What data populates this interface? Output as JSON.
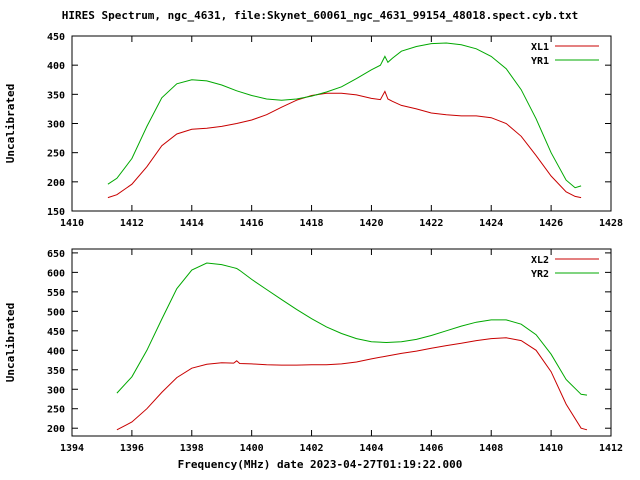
{
  "page": {
    "title": "HIRES Spectrum, ngc_4631, file:Skynet_60061_ngc_4631_99154_48018.spect.cyb.txt",
    "xlabel": "Frequency(MHz) date 2023-04-27T01:19:22.000",
    "colors": {
      "red": "#c80000",
      "green": "#00a800",
      "axis": "#000000",
      "background": "#ffffff"
    }
  },
  "chart_data": [
    {
      "type": "line",
      "ylabel": "Uncalibrated",
      "xlim": [
        1410,
        1428
      ],
      "xtick_step": 2,
      "ylim": [
        150,
        450
      ],
      "ytick_start": 150,
      "ytick_step": 50,
      "legend_position": "top-right",
      "x": [
        1411.2,
        1411.5,
        1412,
        1412.5,
        1413,
        1413.5,
        1414,
        1414.5,
        1415,
        1415.5,
        1416,
        1416.5,
        1417,
        1417.5,
        1418,
        1418.5,
        1419,
        1419.5,
        1420,
        1420.3,
        1420.45,
        1420.55,
        1420.7,
        1421,
        1421.5,
        1422,
        1422.5,
        1423,
        1423.5,
        1424,
        1424.5,
        1425,
        1425.5,
        1426,
        1426.5,
        1426.8,
        1427
      ],
      "series": [
        {
          "name": "XL1",
          "color": "#c80000",
          "values": [
            173,
            178,
            196,
            226,
            262,
            282,
            290,
            292,
            295,
            300,
            306,
            315,
            328,
            340,
            348,
            352,
            352,
            349,
            343,
            341,
            355,
            342,
            338,
            331,
            325,
            318,
            315,
            313,
            313,
            310,
            300,
            278,
            245,
            210,
            183,
            175,
            173
          ]
        },
        {
          "name": "YR1",
          "color": "#00a800",
          "values": [
            196,
            206,
            240,
            295,
            344,
            368,
            375,
            373,
            366,
            356,
            348,
            342,
            340,
            342,
            347,
            354,
            363,
            377,
            392,
            400,
            415,
            405,
            412,
            424,
            432,
            437,
            438,
            435,
            428,
            415,
            394,
            358,
            308,
            250,
            203,
            190,
            193
          ]
        }
      ]
    },
    {
      "type": "line",
      "ylabel": "Uncalibrated",
      "xlim": [
        1394,
        1412
      ],
      "xtick_step": 2,
      "ylim": [
        180,
        660
      ],
      "ytick_start": 200,
      "ytick_step": 50,
      "legend_position": "top-right",
      "x": [
        1395.5,
        1396,
        1396.5,
        1397,
        1397.5,
        1398,
        1398.5,
        1399,
        1399.4,
        1399.5,
        1399.6,
        1400,
        1400.5,
        1401,
        1401.5,
        1402,
        1402.5,
        1403,
        1403.5,
        1404,
        1404.5,
        1405,
        1405.5,
        1406,
        1406.5,
        1407,
        1407.5,
        1408,
        1408.5,
        1409,
        1409.5,
        1410,
        1410.5,
        1411,
        1411.2
      ],
      "series": [
        {
          "name": "XL2",
          "color": "#c80000",
          "values": [
            196,
            216,
            250,
            292,
            330,
            354,
            364,
            368,
            367,
            373,
            366,
            365,
            363,
            362,
            362,
            363,
            363,
            365,
            370,
            378,
            385,
            392,
            398,
            405,
            412,
            418,
            425,
            430,
            432,
            425,
            400,
            345,
            262,
            200,
            196
          ]
        },
        {
          "name": "YR2",
          "color": "#00a800",
          "values": [
            290,
            332,
            400,
            480,
            558,
            606,
            624,
            620,
            612,
            610,
            605,
            582,
            556,
            530,
            505,
            481,
            460,
            443,
            430,
            422,
            420,
            422,
            428,
            438,
            450,
            462,
            472,
            478,
            478,
            467,
            440,
            390,
            325,
            287,
            285
          ]
        }
      ]
    }
  ]
}
